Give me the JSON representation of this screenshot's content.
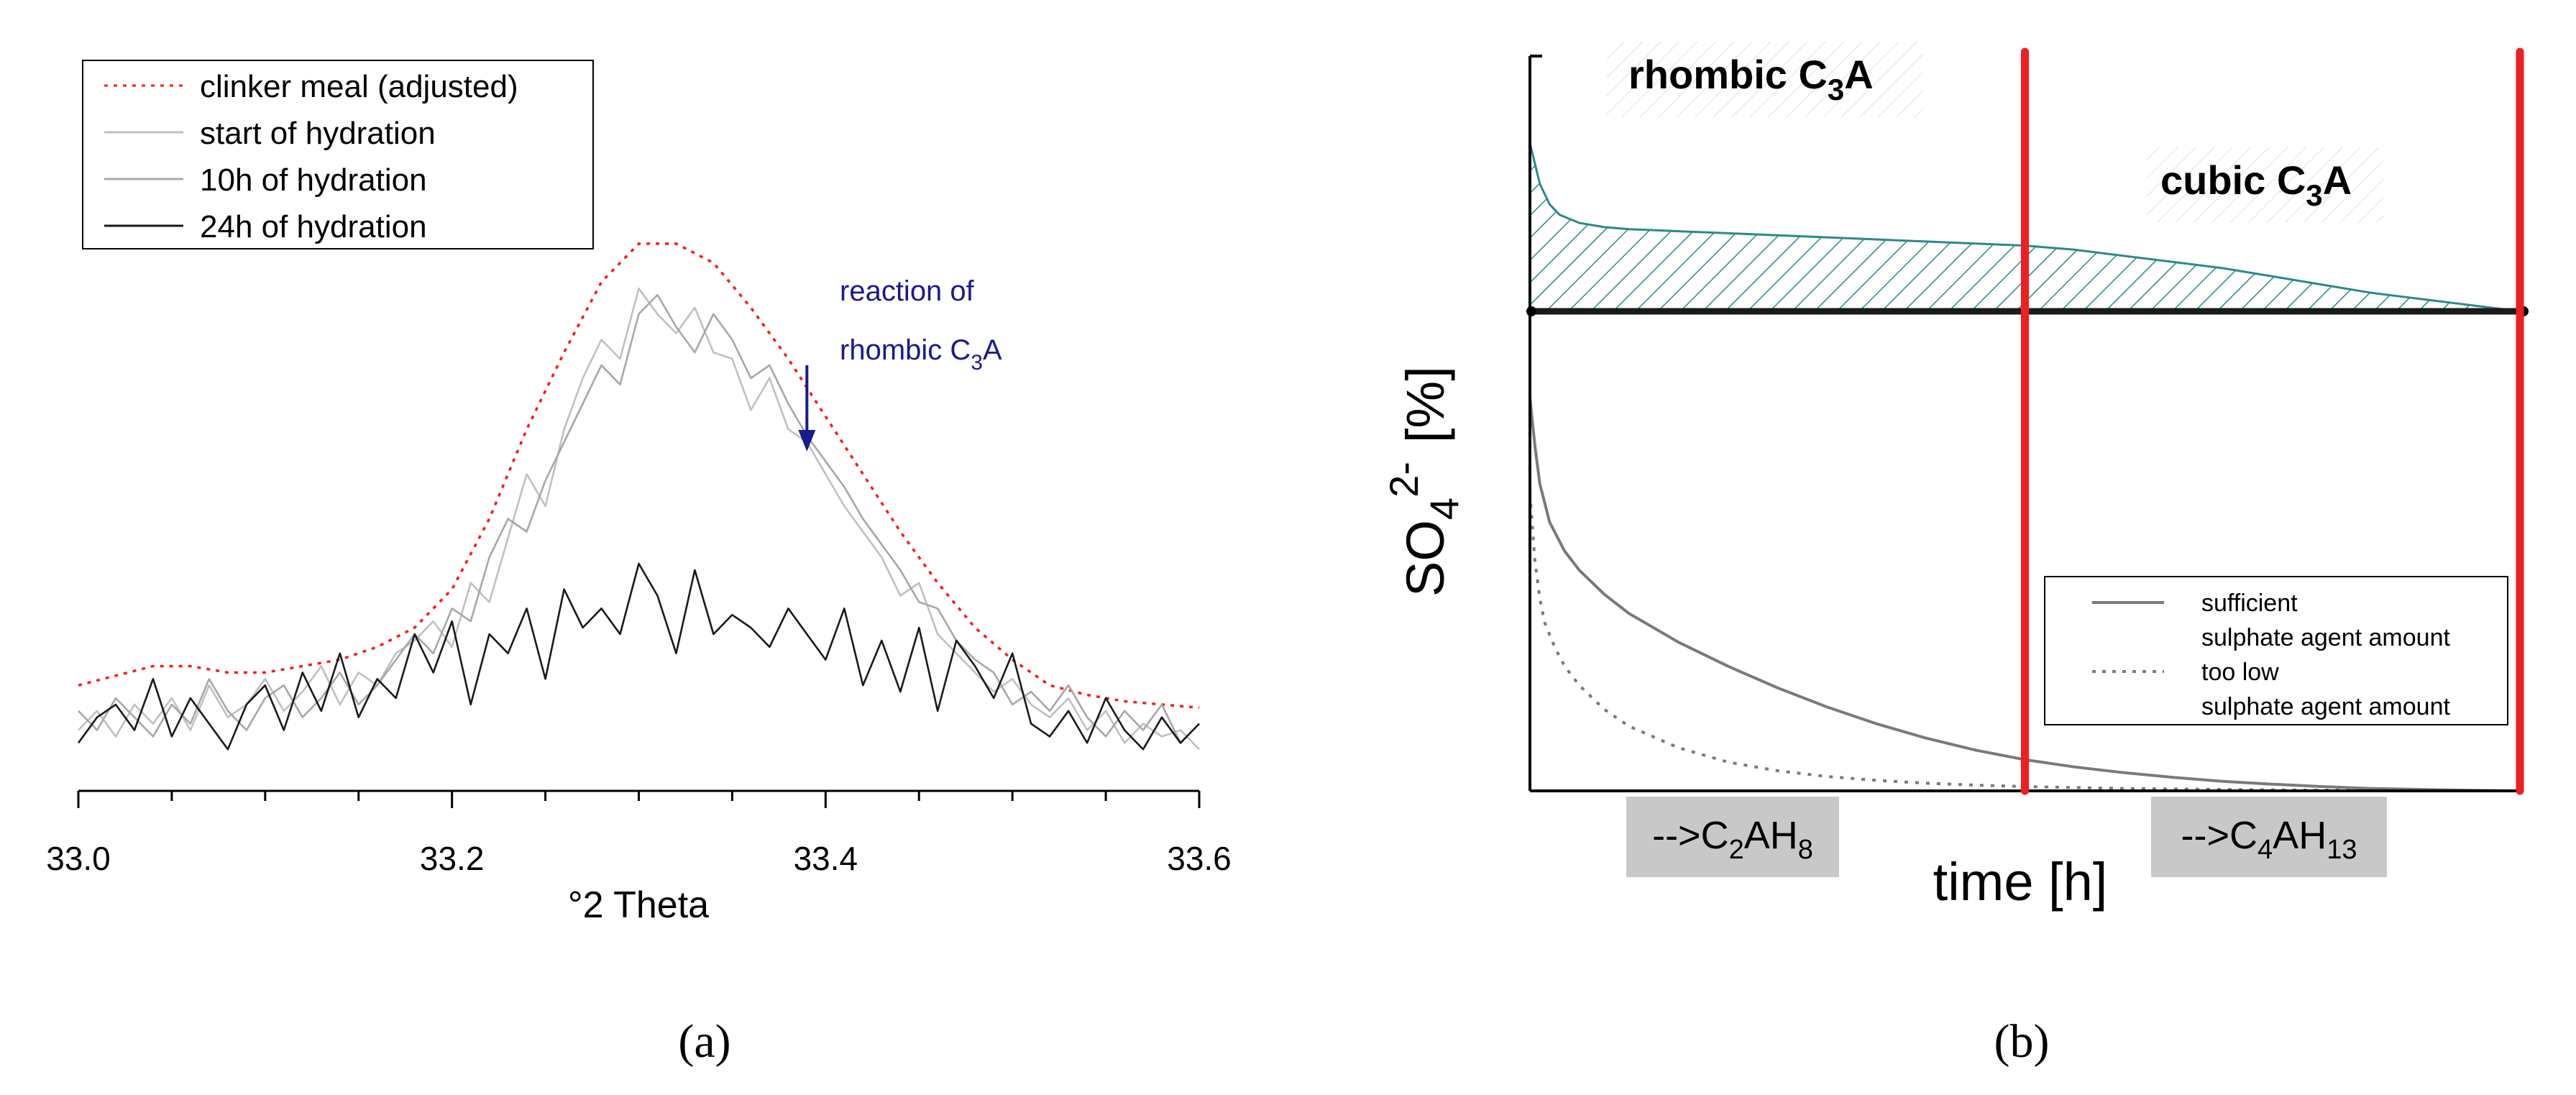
{
  "chart_data": [
    {
      "panel": "a",
      "type": "line",
      "caption": "(a)",
      "xlabel": "°2 Theta",
      "ylabel": "",
      "xlim": [
        33.0,
        33.6
      ],
      "xticks": [
        "33.0",
        "33.2",
        "33.4",
        "33.6"
      ],
      "legend": {
        "position": "top-left",
        "entries": [
          "clinker meal (adjusted)",
          "start of hydration",
          "10h of hydration",
          "24h of hydration"
        ]
      },
      "annotation": {
        "line1": "reaction of",
        "line2": "rhombic C",
        "sub": "3",
        "tail": "A",
        "at_x": 33.39
      },
      "series": [
        {
          "name": "clinker meal (adjusted)",
          "style": "dotted",
          "color": "#ff1a1a",
          "x": [
            33.0,
            33.02,
            33.04,
            33.06,
            33.08,
            33.1,
            33.12,
            33.14,
            33.16,
            33.18,
            33.2,
            33.22,
            33.24,
            33.26,
            33.28,
            33.3,
            33.32,
            33.34,
            33.36,
            33.38,
            33.4,
            33.42,
            33.44,
            33.46,
            33.48,
            33.5,
            33.52,
            33.54,
            33.56,
            33.58,
            33.6
          ],
          "y": [
            12,
            13.5,
            15,
            15,
            14,
            14,
            15,
            16,
            18,
            21,
            27,
            38,
            52,
            64,
            75,
            81,
            81,
            78,
            71,
            63,
            54,
            45,
            36,
            28,
            21,
            16,
            12,
            10.5,
            9.5,
            9,
            8.5
          ]
        },
        {
          "name": "start of hydration",
          "style": "solid",
          "color": "#c0c0c0",
          "x": [
            33.0,
            33.01,
            33.02,
            33.03,
            33.04,
            33.05,
            33.06,
            33.07,
            33.08,
            33.09,
            33.1,
            33.11,
            33.12,
            33.13,
            33.14,
            33.15,
            33.16,
            33.17,
            33.18,
            33.19,
            33.2,
            33.21,
            33.22,
            33.23,
            33.24,
            33.25,
            33.26,
            33.27,
            33.28,
            33.29,
            33.3,
            33.31,
            33.32,
            33.33,
            33.34,
            33.35,
            33.36,
            33.37,
            33.38,
            33.39,
            33.4,
            33.41,
            33.42,
            33.43,
            33.44,
            33.45,
            33.46,
            33.47,
            33.48,
            33.49,
            33.5,
            33.51,
            33.52,
            33.53,
            33.54,
            33.55,
            33.56,
            33.57,
            33.58,
            33.59,
            33.6
          ],
          "y": [
            5,
            8,
            4,
            9,
            6,
            10,
            5,
            12,
            7,
            9,
            13,
            8,
            11,
            15,
            9,
            14,
            12,
            17,
            19,
            22,
            18,
            28,
            25,
            35,
            45,
            40,
            52,
            60,
            66,
            63,
            74,
            70,
            67,
            71,
            64,
            63,
            55,
            60,
            52,
            50,
            45,
            40,
            36,
            32,
            26,
            28,
            20,
            17,
            14,
            11,
            13,
            9,
            7,
            10,
            5,
            8,
            3,
            6,
            4,
            5,
            2
          ]
        },
        {
          "name": "10h of hydration",
          "style": "solid",
          "color": "#a8a8a8",
          "x": [
            33.0,
            33.01,
            33.02,
            33.03,
            33.04,
            33.05,
            33.06,
            33.07,
            33.08,
            33.09,
            33.1,
            33.11,
            33.12,
            33.13,
            33.14,
            33.15,
            33.16,
            33.17,
            33.18,
            33.19,
            33.2,
            33.21,
            33.22,
            33.23,
            33.24,
            33.25,
            33.26,
            33.27,
            33.28,
            33.29,
            33.3,
            33.31,
            33.32,
            33.33,
            33.34,
            33.35,
            33.36,
            33.37,
            33.38,
            33.39,
            33.4,
            33.41,
            33.42,
            33.43,
            33.44,
            33.45,
            33.46,
            33.47,
            33.48,
            33.49,
            33.5,
            33.51,
            33.52,
            33.53,
            33.54,
            33.55,
            33.56,
            33.57,
            33.58,
            33.59,
            33.6
          ],
          "y": [
            8,
            5,
            10,
            7,
            4,
            9,
            6,
            13,
            8,
            5,
            10,
            12,
            7,
            10,
            14,
            9,
            12,
            16,
            20,
            17,
            24,
            22,
            32,
            38,
            36,
            44,
            50,
            56,
            62,
            59,
            70,
            73,
            68,
            64,
            70,
            66,
            60,
            62,
            56,
            51,
            47,
            43,
            38,
            34,
            30,
            25,
            24,
            19,
            16,
            14,
            9,
            11,
            8,
            12,
            7,
            4,
            8,
            5,
            9,
            3,
            6
          ]
        },
        {
          "name": "24h of hydration",
          "style": "solid",
          "color": "#1a1a1a",
          "x": [
            33.0,
            33.01,
            33.02,
            33.03,
            33.04,
            33.05,
            33.06,
            33.07,
            33.08,
            33.09,
            33.1,
            33.11,
            33.12,
            33.13,
            33.14,
            33.15,
            33.16,
            33.17,
            33.18,
            33.19,
            33.2,
            33.21,
            33.22,
            33.23,
            33.24,
            33.25,
            33.26,
            33.27,
            33.28,
            33.29,
            33.3,
            33.31,
            33.32,
            33.33,
            33.34,
            33.35,
            33.36,
            33.37,
            33.38,
            33.39,
            33.4,
            33.41,
            33.42,
            33.43,
            33.44,
            33.45,
            33.46,
            33.47,
            33.48,
            33.49,
            33.5,
            33.51,
            33.52,
            33.53,
            33.54,
            33.55,
            33.56,
            33.57,
            33.58,
            33.59,
            33.6
          ],
          "y": [
            3,
            7,
            9,
            5,
            13,
            4,
            10,
            6,
            2,
            9,
            12,
            5,
            14,
            8,
            17,
            7,
            13,
            10,
            20,
            14,
            22,
            9,
            20,
            17,
            24,
            13,
            27,
            21,
            24,
            20,
            31,
            26,
            17,
            30,
            20,
            23,
            21,
            18,
            24,
            20,
            16,
            24,
            12,
            19,
            11,
            21,
            8,
            19,
            15,
            10,
            17,
            6,
            4,
            8,
            3,
            10,
            5,
            2,
            7,
            3,
            6
          ]
        }
      ]
    },
    {
      "panel": "b",
      "type": "area",
      "caption": "(b)",
      "xlabel": "time [h]",
      "ylabel_main": "SO",
      "ylabel_sub": "4",
      "ylabel_sup": "2-",
      "ylabel_tail": "[%]",
      "xlim": [
        0,
        10
      ],
      "upper_ylim": [
        0,
        1
      ],
      "lower_ylim": [
        0,
        1
      ],
      "region_labels": [
        {
          "main": "rhombic C",
          "sub": "3",
          "tail": "A",
          "x": 1.5
        },
        {
          "main": "cubic C",
          "sub": "3",
          "tail": "A",
          "x": 7.85
        }
      ],
      "phase_labels": [
        {
          "prefix": "-->C",
          "s1": "2",
          "mid": "AH",
          "s2": "8",
          "x": 2.1
        },
        {
          "prefix": "-->C",
          "s1": "4",
          "mid": "AH",
          "s2": "13",
          "x": 7.55
        }
      ],
      "vertical_markers": [
        5.0,
        10.0
      ],
      "upper_area": {
        "name": "hatched band (C3A reactivity)",
        "x": [
          0,
          0.05,
          0.1,
          0.2,
          0.3,
          0.5,
          0.75,
          1.0,
          1.5,
          2.0,
          2.5,
          3.0,
          3.5,
          4.0,
          4.5,
          5.0,
          5.5,
          6.0,
          6.5,
          7.0,
          7.5,
          8.0,
          8.5,
          9.0,
          9.5,
          10.0
        ],
        "y": [
          0.82,
          0.72,
          0.62,
          0.52,
          0.47,
          0.43,
          0.41,
          0.4,
          0.39,
          0.38,
          0.37,
          0.36,
          0.35,
          0.34,
          0.33,
          0.32,
          0.3,
          0.27,
          0.24,
          0.21,
          0.17,
          0.13,
          0.09,
          0.06,
          0.03,
          0.0
        ]
      },
      "lower_series": [
        {
          "name": "sufficient sulphate agent amount",
          "style": "solid",
          "color": "#7a7a7a",
          "x": [
            0,
            0.05,
            0.1,
            0.2,
            0.35,
            0.5,
            0.75,
            1.0,
            1.5,
            2.0,
            2.5,
            3.0,
            3.5,
            4.0,
            4.5,
            5.0,
            5.5,
            6.0,
            6.5,
            7.0,
            7.5,
            8.0,
            8.5,
            9.0,
            9.5,
            10.0
          ],
          "y": [
            0.82,
            0.72,
            0.64,
            0.56,
            0.5,
            0.46,
            0.41,
            0.37,
            0.31,
            0.26,
            0.215,
            0.175,
            0.14,
            0.11,
            0.085,
            0.065,
            0.05,
            0.038,
            0.028,
            0.02,
            0.014,
            0.009,
            0.005,
            0.003,
            0.001,
            0.0
          ]
        },
        {
          "name": "too low sulphate agent amount",
          "style": "dotted",
          "color": "#7a7a7a",
          "x": [
            0,
            0.05,
            0.1,
            0.15,
            0.25,
            0.35,
            0.5,
            0.75,
            1.0,
            1.5,
            2.0,
            2.5,
            3.0,
            3.5,
            4.0,
            4.5,
            5.0,
            6.0,
            7.0,
            8.0,
            9.0,
            10.0
          ],
          "y": [
            0.62,
            0.48,
            0.4,
            0.35,
            0.3,
            0.26,
            0.22,
            0.17,
            0.135,
            0.09,
            0.06,
            0.042,
            0.03,
            0.022,
            0.016,
            0.012,
            0.009,
            0.005,
            0.003,
            0.0015,
            0.0005,
            0.0
          ]
        }
      ],
      "legend": {
        "position": "bottom-right",
        "entries": [
          {
            "line1": "sufficient",
            "line2": "sulphate agent amount",
            "style": "solid"
          },
          {
            "line1": "too low",
            "line2": "sulphate agent amount",
            "style": "dotted"
          }
        ]
      }
    }
  ],
  "colors": {
    "red_marker": "#f01e1e",
    "hatch": "#2a8a8a",
    "arrow": "#1a1a8c",
    "phase_box": "#c8c8c8"
  }
}
